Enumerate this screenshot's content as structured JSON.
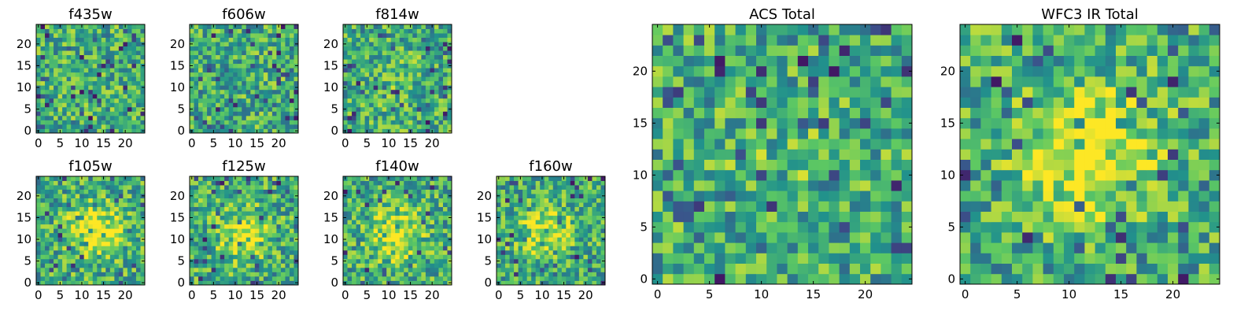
{
  "figure": {
    "description_type": "grid of heatmap image panels",
    "colormap": "viridis",
    "colormap_stops": [
      "#440154",
      "#3b528b",
      "#21918c",
      "#5ec962",
      "#fde725"
    ]
  },
  "chart_data": [
    {
      "id": "f435w",
      "type": "heatmap",
      "title": "f435w",
      "grid_size": 25,
      "xlim": [
        -0.5,
        24.5
      ],
      "ylim": [
        -0.5,
        24.5
      ],
      "xticks": [
        0,
        5,
        10,
        15,
        20
      ],
      "yticks": [
        0,
        5,
        10,
        15,
        20
      ],
      "xtick_labels": [
        "0",
        "5",
        "10",
        "15",
        "20"
      ],
      "ytick_labels": [
        "0",
        "5",
        "10",
        "15",
        "20"
      ],
      "values": "unreadable",
      "pattern": {
        "kind": "noise",
        "seed": 11,
        "centroid": [
          12,
          12
        ],
        "peak_strength": 0.0
      }
    },
    {
      "id": "f606w",
      "type": "heatmap",
      "title": "f606w",
      "grid_size": 25,
      "xlim": [
        -0.5,
        24.5
      ],
      "ylim": [
        -0.5,
        24.5
      ],
      "xticks": [
        0,
        5,
        10,
        15,
        20
      ],
      "yticks": [
        0,
        5,
        10,
        15,
        20
      ],
      "xtick_labels": [
        "0",
        "5",
        "10",
        "15",
        "20"
      ],
      "ytick_labels": [
        "0",
        "5",
        "10",
        "15",
        "20"
      ],
      "values": "unreadable",
      "pattern": {
        "kind": "noise",
        "seed": 23,
        "centroid": [
          12,
          12
        ],
        "peak_strength": 0.0
      }
    },
    {
      "id": "f814w",
      "type": "heatmap",
      "title": "f814w",
      "grid_size": 25,
      "xlim": [
        -0.5,
        24.5
      ],
      "ylim": [
        -0.5,
        24.5
      ],
      "xticks": [
        0,
        5,
        10,
        15,
        20
      ],
      "yticks": [
        0,
        5,
        10,
        15,
        20
      ],
      "xtick_labels": [
        "0",
        "5",
        "10",
        "15",
        "20"
      ],
      "ytick_labels": [
        "0",
        "5",
        "10",
        "15",
        "20"
      ],
      "values": "unreadable",
      "pattern": {
        "kind": "noise",
        "seed": 37,
        "centroid": [
          12,
          12
        ],
        "peak_strength": 0.1
      }
    },
    {
      "id": "f105w",
      "type": "heatmap",
      "title": "f105w",
      "grid_size": 25,
      "xlim": [
        -0.5,
        24.5
      ],
      "ylim": [
        -0.5,
        24.5
      ],
      "xticks": [
        0,
        5,
        10,
        15,
        20
      ],
      "yticks": [
        0,
        5,
        10,
        15,
        20
      ],
      "xtick_labels": [
        "0",
        "5",
        "10",
        "15",
        "20"
      ],
      "ytick_labels": [
        "0",
        "5",
        "10",
        "15",
        "20"
      ],
      "values": "unreadable",
      "pattern": {
        "kind": "source",
        "seed": 51,
        "centroid": [
          13,
          12
        ],
        "peak_strength": 0.7
      }
    },
    {
      "id": "f125w",
      "type": "heatmap",
      "title": "f125w",
      "grid_size": 25,
      "xlim": [
        -0.5,
        24.5
      ],
      "ylim": [
        -0.5,
        24.5
      ],
      "xticks": [
        0,
        5,
        10,
        15,
        20
      ],
      "yticks": [
        0,
        5,
        10,
        15,
        20
      ],
      "xtick_labels": [
        "0",
        "5",
        "10",
        "15",
        "20"
      ],
      "ytick_labels": [
        "0",
        "5",
        "10",
        "15",
        "20"
      ],
      "values": "unreadable",
      "pattern": {
        "kind": "source",
        "seed": 63,
        "centroid": [
          12,
          11
        ],
        "peak_strength": 0.6
      }
    },
    {
      "id": "f140w",
      "type": "heatmap",
      "title": "f140w",
      "grid_size": 25,
      "xlim": [
        -0.5,
        24.5
      ],
      "ylim": [
        -0.5,
        24.5
      ],
      "xticks": [
        0,
        5,
        10,
        15,
        20
      ],
      "yticks": [
        0,
        5,
        10,
        15,
        20
      ],
      "xtick_labels": [
        "0",
        "5",
        "10",
        "15",
        "20"
      ],
      "ytick_labels": [
        "0",
        "5",
        "10",
        "15",
        "20"
      ],
      "values": "unreadable",
      "pattern": {
        "kind": "source",
        "seed": 77,
        "centroid": [
          12,
          11
        ],
        "peak_strength": 0.6
      }
    },
    {
      "id": "f160w",
      "type": "heatmap",
      "title": "f160w",
      "grid_size": 25,
      "xlim": [
        -0.5,
        24.5
      ],
      "ylim": [
        -0.5,
        24.5
      ],
      "xticks": [
        0,
        5,
        10,
        15,
        20
      ],
      "yticks": [
        0,
        5,
        10,
        15,
        20
      ],
      "xtick_labels": [
        "0",
        "5",
        "10",
        "15",
        "20"
      ],
      "ytick_labels": [
        "0",
        "5",
        "10",
        "15",
        "20"
      ],
      "values": "unreadable",
      "pattern": {
        "kind": "source",
        "seed": 89,
        "centroid": [
          11,
          12
        ],
        "peak_strength": 0.55
      }
    },
    {
      "id": "acs-total",
      "type": "heatmap",
      "title": "ACS Total",
      "grid_size": 25,
      "xlim": [
        -0.5,
        24.5
      ],
      "ylim": [
        -0.5,
        24.5
      ],
      "xticks": [
        0,
        5,
        10,
        15,
        20
      ],
      "yticks": [
        0,
        5,
        10,
        15,
        20
      ],
      "xtick_labels": [
        "0",
        "5",
        "10",
        "15",
        "20"
      ],
      "ytick_labels": [
        "0",
        "5",
        "10",
        "15",
        "20"
      ],
      "values": "unreadable",
      "pattern": {
        "kind": "noise",
        "seed": 101,
        "centroid": [
          12,
          12
        ],
        "peak_strength": 0.1
      }
    },
    {
      "id": "wfc3-ir-total",
      "type": "heatmap",
      "title": "WFC3 IR Total",
      "grid_size": 25,
      "xlim": [
        -0.5,
        24.5
      ],
      "ylim": [
        -0.5,
        24.5
      ],
      "xticks": [
        0,
        5,
        10,
        15,
        20
      ],
      "yticks": [
        0,
        5,
        10,
        15,
        20
      ],
      "xtick_labels": [
        "0",
        "5",
        "10",
        "15",
        "20"
      ],
      "ytick_labels": [
        "0",
        "5",
        "10",
        "15",
        "20"
      ],
      "values": "unreadable",
      "pattern": {
        "kind": "source",
        "seed": 131,
        "centroid": [
          12,
          12
        ],
        "peak_strength": 0.85
      }
    }
  ]
}
